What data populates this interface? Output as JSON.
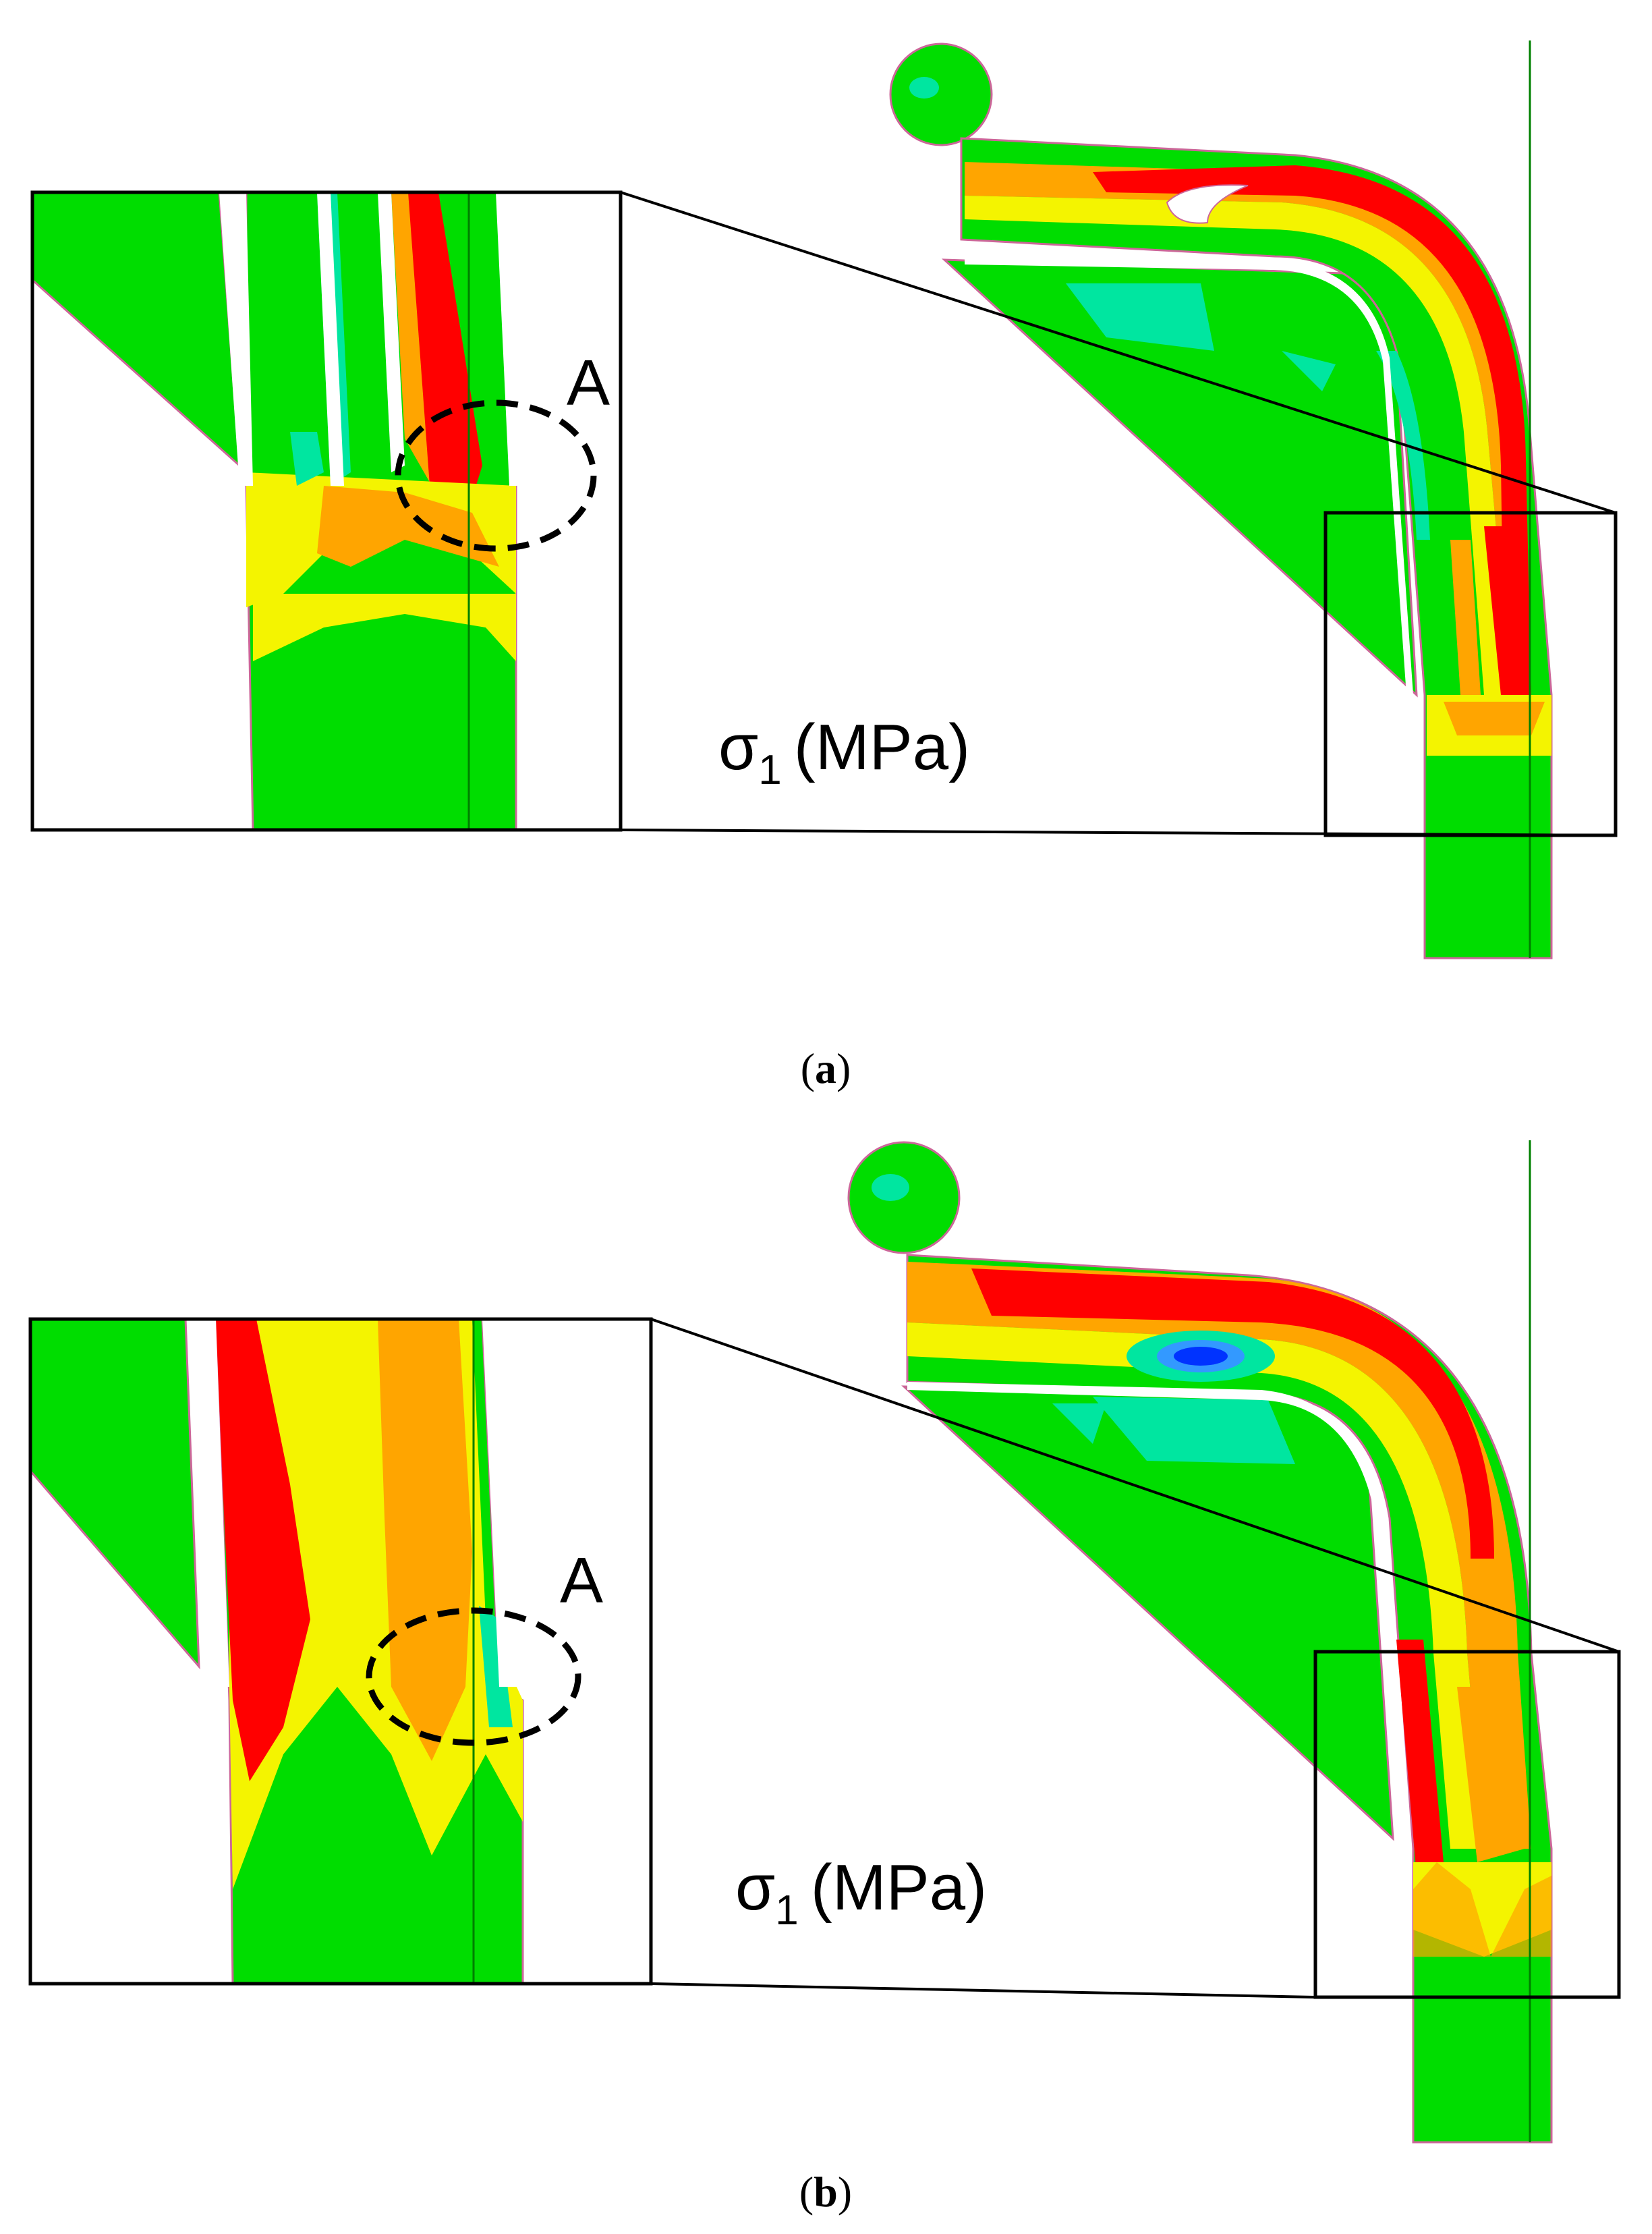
{
  "figure": {
    "panels": [
      {
        "id": "a",
        "caption_letter": "a",
        "zone_label": "A",
        "stress_label": {
          "symbol": "σ",
          "subscript": "1",
          "unit": "(MPa)"
        }
      },
      {
        "id": "b",
        "caption_letter": "b",
        "zone_label": "A",
        "stress_label": {
          "symbol": "σ",
          "subscript": "1",
          "unit": "(MPa)"
        }
      }
    ],
    "caption_open": "(",
    "caption_close": ")"
  },
  "colors": {
    "red": "#ff0000",
    "orange": "#ffa500",
    "yellow": "#f4f400",
    "green": "#00dd00",
    "cyan": "#00e6a0",
    "blue": "#0033ff",
    "outline": "#000000",
    "axis_line": "#008000"
  }
}
